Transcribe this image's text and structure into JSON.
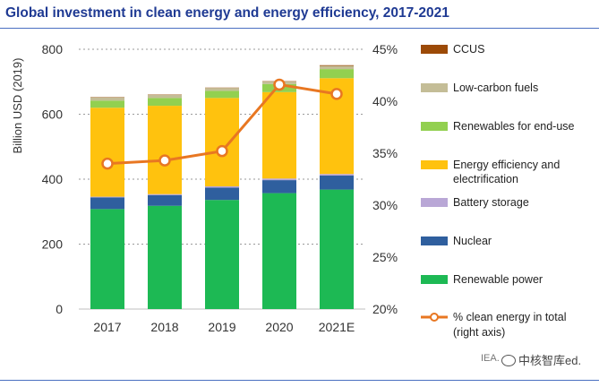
{
  "title": "Global investment in clean energy and energy efficiency, 2017-2021",
  "source_note": "IEA.",
  "watermark": "中核智库",
  "watermark_tail": "ed.",
  "chart_data": {
    "type": "bar",
    "stacked": true,
    "categories": [
      "2017",
      "2018",
      "2019",
      "2020",
      "2021E"
    ],
    "ylabel": "Billion USD (2019)",
    "ylim": [
      0,
      800
    ],
    "yticks": [
      "0",
      "200",
      "400",
      "600",
      "800"
    ],
    "y2lim": [
      20,
      45
    ],
    "y2ticks": [
      "20%",
      "25%",
      "30%",
      "35%",
      "40%",
      "45%"
    ],
    "grid": "dotted horizontal",
    "legend_position": "right",
    "series": [
      {
        "name": "Renewable power",
        "color": "#1db954",
        "values": [
          308,
          318,
          336,
          357,
          368
        ]
      },
      {
        "name": "Nuclear",
        "color": "#2f5f9e",
        "values": [
          36,
          33,
          38,
          40,
          43
        ]
      },
      {
        "name": "Battery storage",
        "color": "#b9a7d6",
        "values": [
          2,
          3,
          4,
          5,
          5
        ]
      },
      {
        "name": "Energy efficiency  and electrification",
        "color": "#ffc20e",
        "values": [
          274,
          272,
          272,
          266,
          295
        ]
      },
      {
        "name": "Renewables for end-use",
        "color": "#92d050",
        "values": [
          22,
          24,
          22,
          25,
          28
        ]
      },
      {
        "name": "Low-carbon fuels",
        "color": "#c4bd97",
        "values": [
          10,
          10,
          9,
          8,
          10
        ]
      },
      {
        "name": "CCUS",
        "color": "#9c4a07",
        "values": [
          1,
          1,
          1,
          1,
          2
        ]
      }
    ],
    "line_series": {
      "name": "% clean energy in total (right axis)",
      "color": "#e87722",
      "values": [
        34.0,
        34.3,
        35.2,
        41.6,
        40.7
      ]
    }
  }
}
